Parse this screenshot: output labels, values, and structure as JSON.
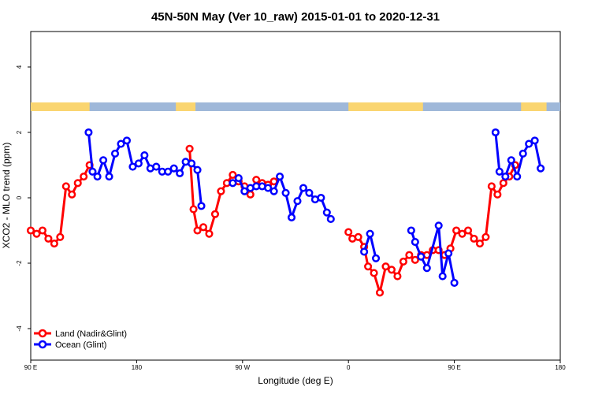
{
  "chart_data": {
    "type": "line",
    "title": "45N-50N May (Ver 10_raw)   2015-01-01 to 2020-12-31",
    "xlabel": "Longitude (deg E)",
    "ylabel": "XCO2 - MLO trend (ppm)",
    "xlim": [
      -90,
      180
    ],
    "ylim": [
      -5,
      5
    ],
    "x_ticks": [
      {
        "value": -90,
        "label": "90 E"
      },
      {
        "value": -36,
        "label": "180"
      },
      {
        "value": 18,
        "label": "90 W"
      },
      {
        "value": 72,
        "label": "0"
      },
      {
        "value": 126,
        "label": "90 E"
      },
      {
        "value": 180,
        "label": "180"
      }
    ],
    "y_ticks": [
      {
        "value": -4,
        "label": "-4"
      },
      {
        "value": -2,
        "label": "-2"
      },
      {
        "value": 0,
        "label": "0"
      },
      {
        "value": 2,
        "label": "2"
      },
      {
        "value": 4,
        "label": "4"
      }
    ],
    "grid": false,
    "legend_position": "bottom-left",
    "series": [
      {
        "name": "Land (Nadir&Glint)",
        "color": "#ff0000",
        "points": [
          [
            -90,
            -1.0
          ],
          [
            -87,
            -1.1
          ],
          [
            -84,
            -1.0
          ],
          [
            -81,
            -1.25
          ],
          [
            -78,
            -1.4
          ],
          [
            -75,
            -1.2
          ],
          [
            -72,
            0.35
          ],
          [
            -69,
            0.1
          ],
          [
            -66,
            0.45
          ],
          [
            -63,
            0.65
          ],
          [
            -60,
            1.0
          ],
          [
            -9,
            1.5
          ],
          [
            -7,
            -0.35
          ],
          [
            -5,
            -1.0
          ],
          [
            -2,
            -0.9
          ],
          [
            1,
            -1.1
          ],
          [
            4,
            -0.5
          ],
          [
            7,
            0.2
          ],
          [
            10,
            0.45
          ],
          [
            13,
            0.7
          ],
          [
            16,
            0.5
          ],
          [
            19,
            0.35
          ],
          [
            22,
            0.1
          ],
          [
            25,
            0.55
          ],
          [
            28,
            0.45
          ],
          [
            31,
            0.4
          ],
          [
            34,
            0.5
          ],
          [
            72,
            -1.05
          ],
          [
            74,
            -1.25
          ],
          [
            77,
            -1.2
          ],
          [
            80,
            -1.5
          ],
          [
            82,
            -2.1
          ],
          [
            85,
            -2.3
          ],
          [
            88,
            -2.9
          ],
          [
            91,
            -2.1
          ],
          [
            94,
            -2.2
          ],
          [
            97,
            -2.4
          ],
          [
            100,
            -1.95
          ],
          [
            103,
            -1.75
          ],
          [
            106,
            -1.9
          ],
          [
            109,
            -1.75
          ],
          [
            112,
            -1.75
          ],
          [
            115,
            -1.6
          ],
          [
            118,
            -1.6
          ],
          [
            121,
            -1.75
          ],
          [
            124,
            -1.55
          ],
          [
            127,
            -1.0
          ],
          [
            130,
            -1.1
          ],
          [
            133,
            -1.0
          ],
          [
            136,
            -1.25
          ],
          [
            139,
            -1.4
          ],
          [
            142,
            -1.2
          ],
          [
            145,
            0.35
          ],
          [
            148,
            0.1
          ],
          [
            151,
            0.45
          ],
          [
            154,
            0.65
          ],
          [
            157,
            1.0
          ]
        ]
      },
      {
        "name": "Ocean (Glint)",
        "color": "#0000ff",
        "points": [
          [
            -60.5,
            2.0
          ],
          [
            -58.5,
            0.8
          ],
          [
            -56,
            0.65
          ],
          [
            -53,
            1.15
          ],
          [
            -50,
            0.65
          ],
          [
            -47,
            1.35
          ],
          [
            -44,
            1.65
          ],
          [
            -41,
            1.75
          ],
          [
            -38,
            0.95
          ],
          [
            -35,
            1.05
          ],
          [
            -32,
            1.3
          ],
          [
            -29,
            0.9
          ],
          [
            -26,
            0.95
          ],
          [
            -23,
            0.8
          ],
          [
            -20,
            0.8
          ],
          [
            -17,
            0.9
          ],
          [
            -14,
            0.75
          ],
          [
            -11,
            1.1
          ],
          [
            -8,
            1.05
          ],
          [
            -5,
            0.85
          ],
          [
            -3,
            -0.25
          ],
          [
            13,
            0.45
          ],
          [
            16,
            0.6
          ],
          [
            19,
            0.2
          ],
          [
            22,
            0.3
          ],
          [
            25,
            0.35
          ],
          [
            28,
            0.35
          ],
          [
            31,
            0.3
          ],
          [
            34,
            0.2
          ],
          [
            37,
            0.65
          ],
          [
            40,
            0.15
          ],
          [
            43,
            -0.6
          ],
          [
            46,
            -0.1
          ],
          [
            49,
            0.3
          ],
          [
            52,
            0.15
          ],
          [
            55,
            -0.05
          ],
          [
            58,
            0.0
          ],
          [
            61,
            -0.45
          ],
          [
            63,
            -0.65
          ],
          [
            80,
            -1.65
          ],
          [
            83,
            -1.1
          ],
          [
            86,
            -1.85
          ],
          [
            104,
            -1.0
          ],
          [
            106,
            -1.35
          ],
          [
            109,
            -1.8
          ],
          [
            112,
            -2.15
          ],
          [
            118,
            -0.85
          ],
          [
            120,
            -2.4
          ],
          [
            123,
            -1.7
          ],
          [
            126,
            -2.6
          ],
          [
            147,
            2.0
          ],
          [
            149,
            0.8
          ],
          [
            152,
            0.65
          ],
          [
            155,
            1.15
          ],
          [
            158,
            0.65
          ],
          [
            161,
            1.35
          ],
          [
            164,
            1.65
          ],
          [
            167,
            1.75
          ],
          [
            170,
            0.9
          ]
        ]
      }
    ]
  },
  "colorbar": {
    "land_color": "#fad570",
    "ocean_color": "#9fb8d9",
    "land_ranges": [
      [
        -90,
        -60
      ],
      [
        -16,
        -6
      ],
      [
        72,
        110
      ],
      [
        160,
        173
      ]
    ]
  }
}
